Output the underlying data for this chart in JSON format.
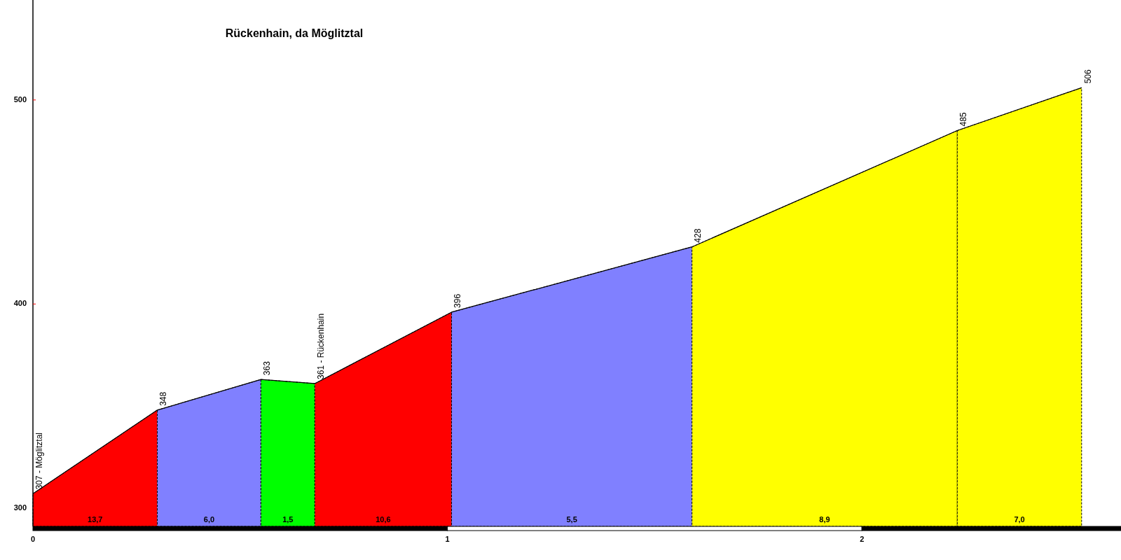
{
  "chart_data": {
    "type": "area",
    "title": "Rückenhain, da Möglitztal",
    "xlim": [
      0,
      2.625
    ],
    "xticks": [
      0,
      1,
      2
    ],
    "ylim": [
      291,
      549
    ],
    "yticks": [
      300,
      400,
      500
    ],
    "grid": false,
    "series": [
      {
        "type": "line",
        "color": "#000000",
        "x": [
          0,
          0.3,
          0.55,
          0.68,
          1.01,
          1.59,
          2.23,
          2.53
        ],
        "values": [
          307,
          348,
          363,
          361,
          396,
          428,
          485,
          506
        ],
        "value_labels": [
          "307 - Möglitztal",
          "348",
          "363",
          "361 - Rückenhain",
          "396",
          "428",
          "485",
          "506"
        ]
      },
      {
        "color": "#ff0000",
        "x": [
          0,
          0.3
        ],
        "values": [
          307,
          348
        ]
      },
      {
        "color": "#8080ff",
        "x": [
          0.3,
          0.55
        ],
        "values": [
          348,
          363
        ]
      },
      {
        "color": "#00ff00",
        "x": [
          0.55,
          0.68
        ],
        "values": [
          363,
          361
        ]
      },
      {
        "color": "#ff0000",
        "x": [
          0.68,
          1.01
        ],
        "values": [
          361,
          396
        ]
      },
      {
        "color": "#8080ff",
        "x": [
          1.01,
          1.59
        ],
        "values": [
          396,
          428
        ]
      },
      {
        "color": "#ffff00",
        "x": [
          1.59,
          2.23
        ],
        "values": [
          428,
          485
        ]
      },
      {
        "color": "#ffff00",
        "x": [
          2.23,
          2.53
        ],
        "values": [
          485,
          506
        ]
      }
    ],
    "annotations": [
      "13,7",
      "6,0",
      "1,5",
      "10,6",
      "5,5",
      "8,9",
      "7,0"
    ]
  }
}
